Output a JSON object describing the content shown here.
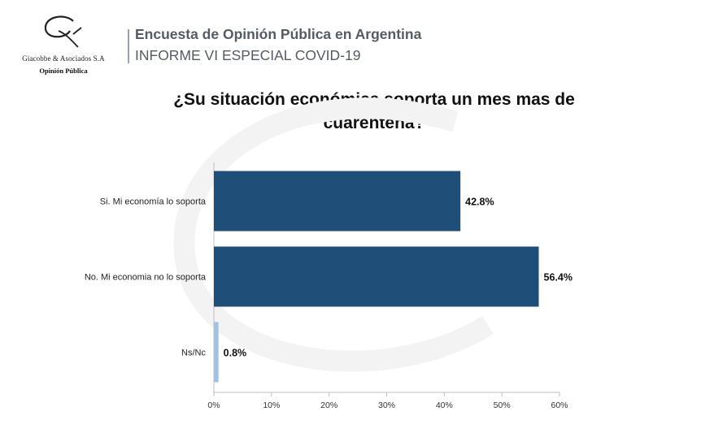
{
  "header": {
    "title": "Encuesta de Opinión Pública en Argentina",
    "subtitle": "INFORME VI ESPECIAL COVID-19"
  },
  "logo": {
    "company": "Giacobbe & Asociados S.A",
    "tagline": "Opinión Pública"
  },
  "colors": {
    "primary_bar": "#1f4e79",
    "light_bar": "#9dc3e6",
    "axis": "#bfbfbf"
  },
  "chart_data": {
    "type": "bar",
    "orientation": "horizontal",
    "title": "¿Su situación económica soporta un mes mas de cuarentena?",
    "categories": [
      "Si. Mi economía lo soporta",
      "No. Mi economia no lo soporta",
      "Ns/Nc"
    ],
    "values": [
      42.8,
      56.4,
      0.8
    ],
    "value_labels": [
      "42.8%",
      "56.4%",
      "0.8%"
    ],
    "xlim": [
      0,
      60
    ],
    "xticks": [
      "0%",
      "10%",
      "20%",
      "30%",
      "40%",
      "50%",
      "60%"
    ],
    "grid": false
  }
}
